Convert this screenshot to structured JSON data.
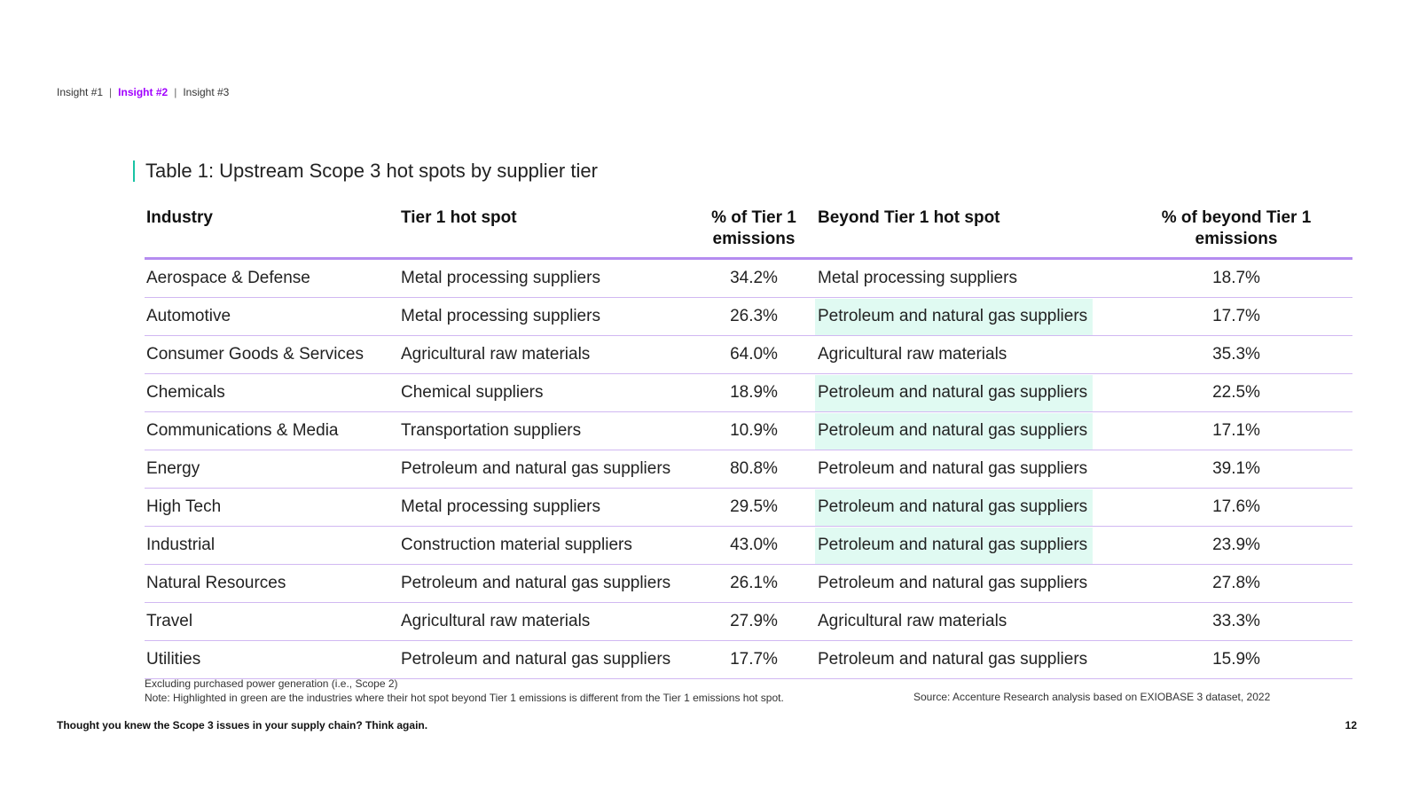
{
  "nav": {
    "items": [
      "Insight #1",
      "Insight #2",
      "Insight #3"
    ],
    "separator": "|"
  },
  "table": {
    "title": "Table 1: Upstream Scope 3 hot spots by supplier tier",
    "headers": {
      "industry": "Industry",
      "tier1": "Tier 1 hot spot",
      "tier1_pct_line1": "% of Tier 1",
      "tier1_pct_line2": "emissions",
      "beyond": "Beyond Tier 1 hot spot",
      "beyond_pct_line1": "% of beyond Tier 1",
      "beyond_pct_line2": "emissions"
    },
    "highlight_color": "#e0faf2",
    "rows": [
      {
        "industry": "Aerospace & Defense",
        "tier1": "Metal processing suppliers",
        "tier1_pct": "34.2%",
        "beyond": "Metal processing suppliers",
        "beyond_pct": "18.7%",
        "highlight": false
      },
      {
        "industry": "Automotive",
        "tier1": "Metal processing suppliers",
        "tier1_pct": "26.3%",
        "beyond": "Petroleum and natural gas suppliers",
        "beyond_pct": "17.7%",
        "highlight": true
      },
      {
        "industry": "Consumer Goods & Services",
        "tier1": "Agricultural raw materials",
        "tier1_pct": "64.0%",
        "beyond": "Agricultural raw materials",
        "beyond_pct": "35.3%",
        "highlight": false
      },
      {
        "industry": "Chemicals",
        "tier1": "Chemical suppliers",
        "tier1_pct": "18.9%",
        "beyond": "Petroleum and natural gas suppliers",
        "beyond_pct": "22.5%",
        "highlight": true
      },
      {
        "industry": "Communications & Media",
        "tier1": "Transportation suppliers",
        "tier1_pct": "10.9%",
        "beyond": "Petroleum and natural gas suppliers",
        "beyond_pct": "17.1%",
        "highlight": true
      },
      {
        "industry": "Energy",
        "tier1": "Petroleum and natural gas suppliers",
        "tier1_pct": "80.8%",
        "beyond": "Petroleum and natural gas suppliers",
        "beyond_pct": "39.1%",
        "highlight": false
      },
      {
        "industry": "High Tech",
        "tier1": "Metal processing suppliers",
        "tier1_pct": "29.5%",
        "beyond": "Petroleum and natural gas suppliers",
        "beyond_pct": "17.6%",
        "highlight": true
      },
      {
        "industry": "Industrial",
        "tier1": "Construction material suppliers",
        "tier1_pct": "43.0%",
        "beyond": "Petroleum and natural gas suppliers",
        "beyond_pct": "23.9%",
        "highlight": true
      },
      {
        "industry": "Natural Resources",
        "tier1": "Petroleum and natural gas suppliers",
        "tier1_pct": "26.1%",
        "beyond": "Petroleum and natural gas suppliers",
        "beyond_pct": "27.8%",
        "highlight": false
      },
      {
        "industry": "Travel",
        "tier1": "Agricultural raw materials",
        "tier1_pct": "27.9%",
        "beyond": "Agricultural raw materials",
        "beyond_pct": "33.3%",
        "highlight": false
      },
      {
        "industry": "Utilities",
        "tier1": "Petroleum and natural gas suppliers",
        "tier1_pct": "17.7%",
        "beyond": "Petroleum and natural gas suppliers",
        "beyond_pct": "15.9%",
        "highlight": false
      }
    ]
  },
  "footnotes": {
    "line1": "Excluding purchased power generation (i.e., Scope 2)",
    "line2": "Note: Highlighted in green are the industries where their hot spot beyond Tier 1 emissions is different from the Tier 1 emissions hot spot.",
    "source": "Source: Accenture Research analysis based on EXIOBASE 3 dataset, 2022"
  },
  "footer": {
    "left": "Thought you knew the Scope 3 issues in your supply chain? Think again.",
    "page_number": "12"
  }
}
